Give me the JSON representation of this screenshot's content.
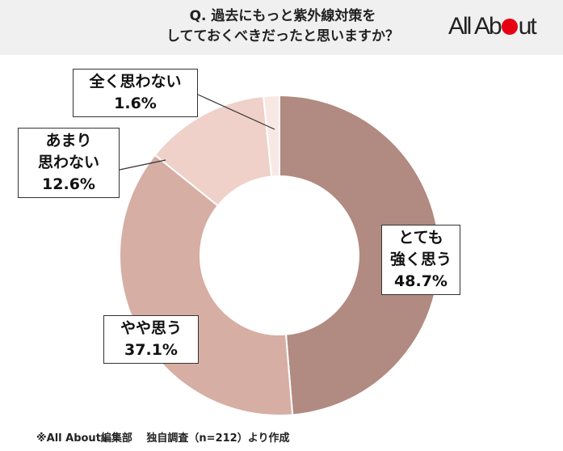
{
  "header": {
    "title_line1": "Q. 過去にもっと紫外線対策を",
    "title_line2": "してておくべきだったと思いますか？",
    "logo": "All About"
  },
  "chart_data": {
    "type": "pie",
    "donut": true,
    "start": "top",
    "direction": "clockwise",
    "categories": [
      "とても強く思う",
      "やや思う",
      "あまり思わない",
      "全く思わない"
    ],
    "values": [
      48.7,
      37.1,
      12.6,
      1.6
    ],
    "unit": "%",
    "colors": [
      "#b18a81",
      "#d6aea4",
      "#efd1c9",
      "#f8e8e4"
    ],
    "labels": [
      {
        "line1": "とても",
        "line2": "強く思う",
        "value": "48.7%"
      },
      {
        "line1": "やや思う",
        "line2": "",
        "value": "37.1%"
      },
      {
        "line1": "あまり",
        "line2": "思わない",
        "value": "12.6%"
      },
      {
        "line1": "全く思わない",
        "line2": "",
        "value": "1.6%"
      }
    ]
  },
  "footer": "※All About編集部　 独自調査（n=212）より作成"
}
